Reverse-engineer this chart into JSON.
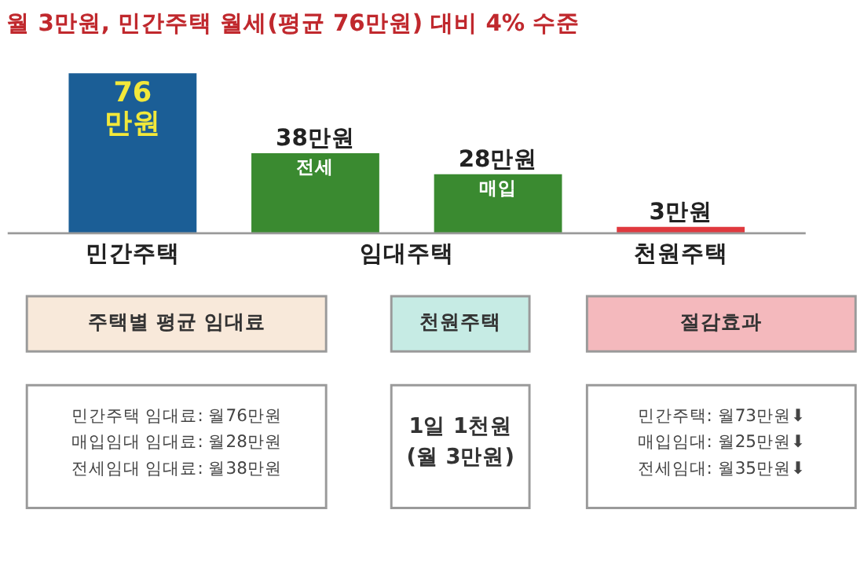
{
  "chart_data": [
    {
      "type": "bar",
      "title": "월 3만원, 민간주택 월세(평균 76만원) 대비 4% 수준",
      "categories": [
        "민간주택",
        "전세",
        "매입",
        "천원주택"
      ],
      "values": [
        76,
        38,
        28,
        3
      ],
      "colors": [
        "#1b5e96",
        "#3a8a30",
        "#3a8a30",
        "#e0393e"
      ],
      "value_labels": [
        "76\n만원",
        "38만원",
        "28만원",
        "3만원"
      ],
      "annotations": [
        "임대주택"
      ]
    },
    {
      "type": "other",
      "annotations": [
        "주택별 평균 임대료",
        "천원주택",
        "절감효과",
        "민간주택 임대료:  월76만원\n매입임대 임대료:  월28만원\n전세임대 임대료:  월38만원",
        "1일 1천원\n(월 3만원)",
        "민간주택:  월73만원⬇\n매입임대:  월25만원⬇\n전세임대:  월35만원⬇"
      ]
    }
  ]
}
